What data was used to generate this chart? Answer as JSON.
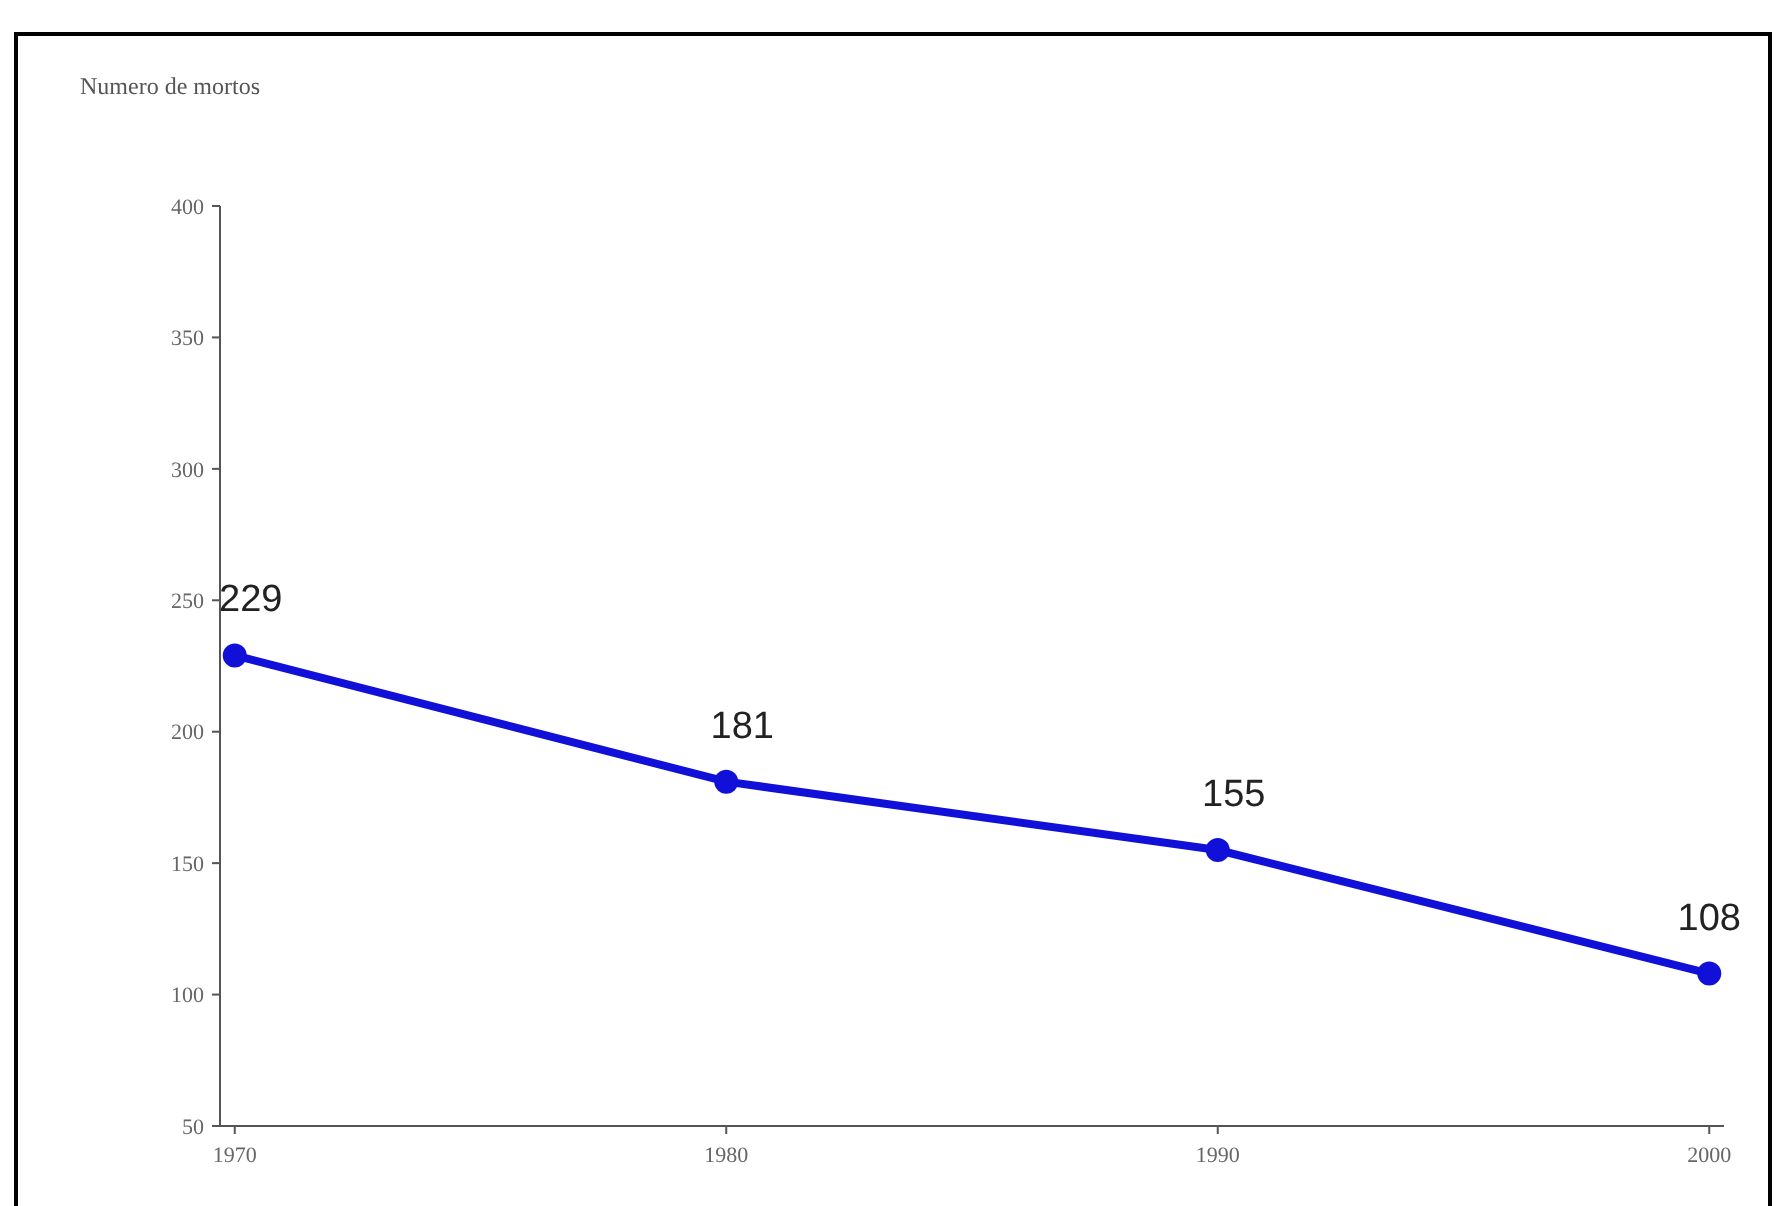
{
  "chart_data": {
    "type": "line",
    "ylabel": "Numero de mortos",
    "categories": [
      "1970",
      "1980",
      "1990",
      "2000"
    ],
    "series": [
      {
        "color": "#1010d8",
        "values": [
          229,
          181,
          155,
          108
        ]
      }
    ],
    "ylim": [
      50,
      400
    ],
    "yticks": [
      50,
      100,
      150,
      200,
      250,
      300,
      350,
      400
    ],
    "grid": false,
    "marker": "circle",
    "line_style": "solid",
    "data_labels": true
  }
}
